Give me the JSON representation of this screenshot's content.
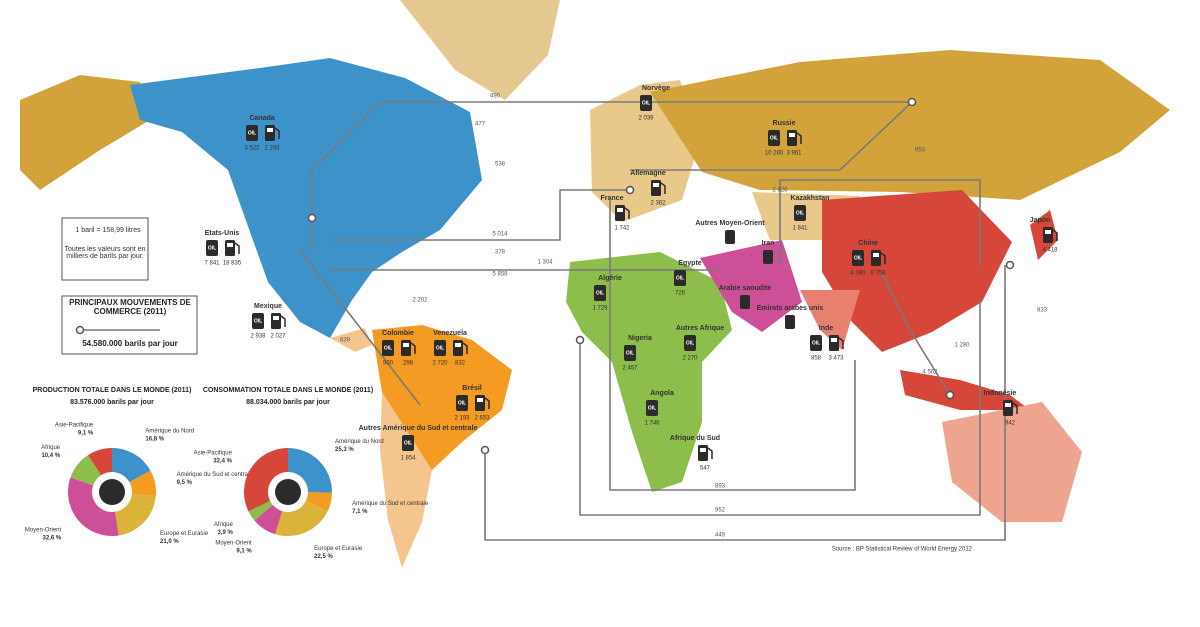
{
  "legend": {
    "icon_label": "OIL",
    "barrel": "1 baril = 158,99 litres",
    "units": "Toutes les valeurs sont en milliers de barils par jour.",
    "trade_title": "PRINCIPAUX MOUVEMENTS DE COMMERCE (2011)",
    "trade_total": "54.580.000 barils par jour"
  },
  "chart_data": [
    {
      "type": "pie",
      "title": "PRODUCTION TOTALE DANS LE MONDE (2011)",
      "subtitle": "83.576.000 barils par jour",
      "categories": [
        "Amérique du Nord",
        "Amérique du Sud et centrale",
        "Europe et Eurasie",
        "Moyen-Orient",
        "Afrique",
        "Asie-Pacifique"
      ],
      "values": [
        16.8,
        9.5,
        21.0,
        32.6,
        10.4,
        9.1
      ],
      "value_labels": [
        "16,8 %",
        "9,5 %",
        "21,0 %",
        "32,6 %",
        "10,4 %",
        "9,1 %"
      ],
      "colors": [
        "#3d93c9",
        "#f39b22",
        "#dcb33a",
        "#cc4f97",
        "#8dbd4b",
        "#d6473a"
      ]
    },
    {
      "type": "pie",
      "title": "CONSOMMATION TOTALE DANS LE MONDE (2011)",
      "subtitle": "88.034.000 barils par jour",
      "categories": [
        "Amérique du Nord",
        "Amérique du Sud et centrale",
        "Europe et Eurasie",
        "Moyen-Orient",
        "Afrique",
        "Asie-Pacifique"
      ],
      "values": [
        25.3,
        7.1,
        22.5,
        9.1,
        3.9,
        32.4
      ],
      "value_labels": [
        "25,3 %",
        "7,1 %",
        "22,5 %",
        "9,1 %",
        "3,9 %",
        "32,4 %"
      ],
      "colors": [
        "#3d93c9",
        "#f39b22",
        "#dcb33a",
        "#cc4f97",
        "#8dbd4b",
        "#d6473a"
      ]
    }
  ],
  "countries": [
    {
      "name": "Canada",
      "production": "3 522",
      "consumption": "2 293"
    },
    {
      "name": "Etats-Unis",
      "production": "7 841",
      "consumption": "18 835"
    },
    {
      "name": "Mexique",
      "production": "2 938",
      "consumption": "2 027"
    },
    {
      "name": "Colombie",
      "production": "930",
      "consumption": "298"
    },
    {
      "name": "Venezuela",
      "production": "2 720",
      "consumption": "832"
    },
    {
      "name": "Brésil",
      "production": "2 193",
      "consumption": "2 653"
    },
    {
      "name": "Autres Amérique du Sud et centrale",
      "production": "1 854"
    },
    {
      "name": "Norvège",
      "production": "2 039"
    },
    {
      "name": "Russie",
      "production": "10 280",
      "consumption": "3 961"
    },
    {
      "name": "Allemagne",
      "consumption": "2 362"
    },
    {
      "name": "France",
      "consumption": "1 742"
    },
    {
      "name": "Kazakhstan",
      "production": "1 841"
    },
    {
      "name": "Autres Moyen-Orient"
    },
    {
      "name": "Chine",
      "production": "4 090",
      "consumption": "9 758"
    },
    {
      "name": "Japon",
      "consumption": "4 418"
    },
    {
      "name": "Inde",
      "production": "858",
      "consumption": "3 473"
    },
    {
      "name": "Algérie",
      "production": "1 729"
    },
    {
      "name": "Egypte",
      "production": "726"
    },
    {
      "name": "Nigeria",
      "production": "2 457"
    },
    {
      "name": "Autres Afrique",
      "production": "2 270"
    },
    {
      "name": "Angola",
      "production": "1 746"
    },
    {
      "name": "Afrique du Sud",
      "consumption": "547"
    },
    {
      "name": "Arabie saoudite"
    },
    {
      "name": "Emirats arabes unis"
    },
    {
      "name": "Iran"
    },
    {
      "name": "Indonésie",
      "consumption": "942"
    }
  ],
  "flows": [
    "490",
    "477",
    "538",
    "5 014",
    "378",
    "1 304",
    "5 858",
    "2 202",
    "839",
    "2 626",
    "953",
    "1 280",
    "4 562",
    "833",
    "893",
    "952",
    "449"
  ],
  "source": "Source : BP Statistical Review of World Energy 2012"
}
